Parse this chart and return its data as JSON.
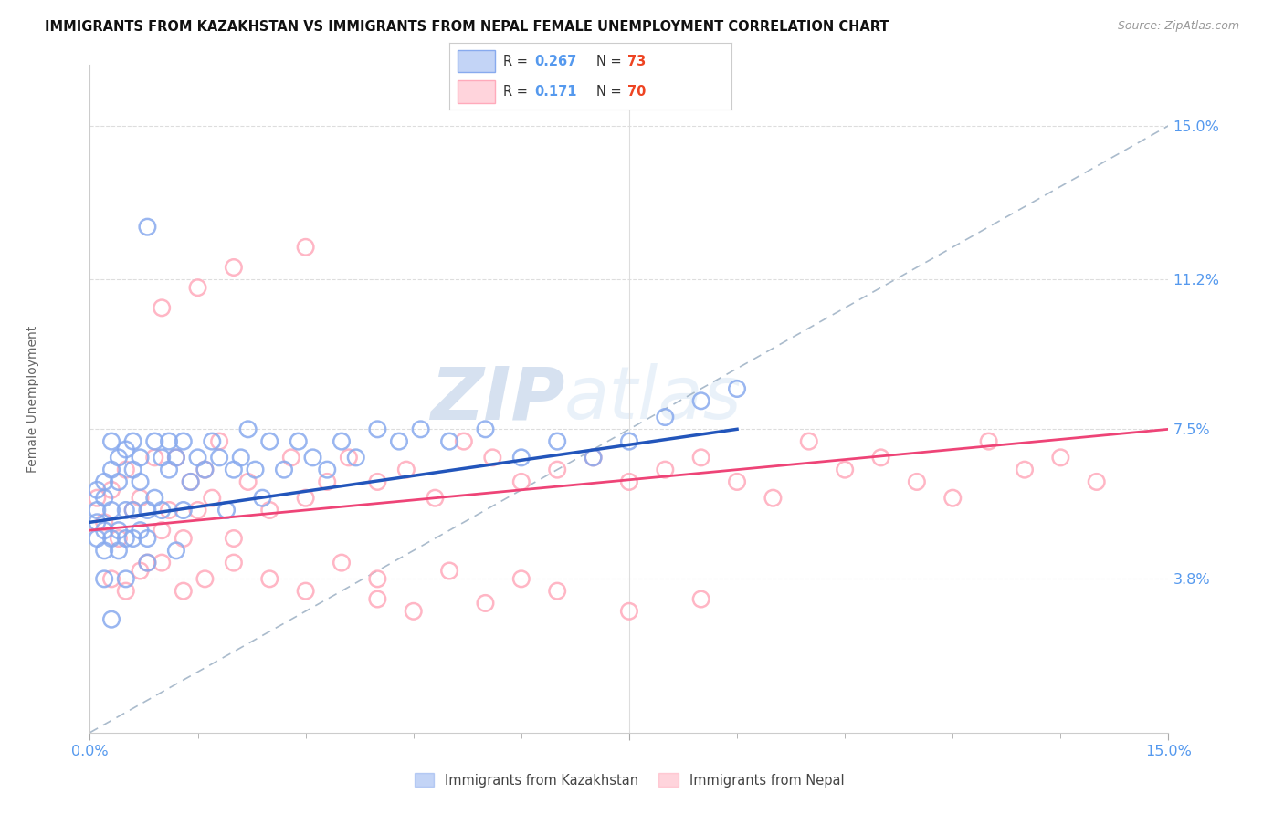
{
  "title": "IMMIGRANTS FROM KAZAKHSTAN VS IMMIGRANTS FROM NEPAL FEMALE UNEMPLOYMENT CORRELATION CHART",
  "source_text": "Source: ZipAtlas.com",
  "ylabel": "Female Unemployment",
  "y_ticks": [
    0.038,
    0.075,
    0.112,
    0.15
  ],
  "y_tick_labels": [
    "3.8%",
    "7.5%",
    "11.2%",
    "15.0%"
  ],
  "xlim": [
    0.0,
    0.15
  ],
  "ylim": [
    0.0,
    0.165
  ],
  "kazakhstan_color": "#88aaee",
  "nepal_color": "#ffaabb",
  "watermark_zip": "ZIP",
  "watermark_atlas": "atlas",
  "background_color": "#ffffff",
  "grid_color": "#dddddd",
  "tick_label_color": "#5599ee",
  "blue_line_color": "#2255bb",
  "pink_line_color": "#ee4477",
  "ref_line_color": "#aabbcc",
  "kazakhstan_x": [
    0.001,
    0.001,
    0.001,
    0.001,
    0.002,
    0.002,
    0.002,
    0.002,
    0.002,
    0.003,
    0.003,
    0.003,
    0.003,
    0.004,
    0.004,
    0.004,
    0.004,
    0.005,
    0.005,
    0.005,
    0.005,
    0.006,
    0.006,
    0.006,
    0.006,
    0.007,
    0.007,
    0.007,
    0.008,
    0.008,
    0.008,
    0.009,
    0.009,
    0.01,
    0.01,
    0.011,
    0.011,
    0.012,
    0.012,
    0.013,
    0.013,
    0.014,
    0.015,
    0.016,
    0.017,
    0.018,
    0.019,
    0.02,
    0.021,
    0.022,
    0.023,
    0.024,
    0.025,
    0.027,
    0.029,
    0.031,
    0.033,
    0.035,
    0.037,
    0.04,
    0.043,
    0.046,
    0.05,
    0.055,
    0.06,
    0.065,
    0.07,
    0.075,
    0.08,
    0.085,
    0.09,
    0.008,
    0.003
  ],
  "kazakhstan_y": [
    0.055,
    0.06,
    0.048,
    0.052,
    0.05,
    0.058,
    0.045,
    0.062,
    0.038,
    0.055,
    0.065,
    0.048,
    0.072,
    0.05,
    0.062,
    0.045,
    0.068,
    0.055,
    0.048,
    0.07,
    0.038,
    0.055,
    0.065,
    0.048,
    0.072,
    0.05,
    0.062,
    0.068,
    0.055,
    0.048,
    0.042,
    0.058,
    0.072,
    0.055,
    0.068,
    0.065,
    0.072,
    0.068,
    0.045,
    0.072,
    0.055,
    0.062,
    0.068,
    0.065,
    0.072,
    0.068,
    0.055,
    0.065,
    0.068,
    0.075,
    0.065,
    0.058,
    0.072,
    0.065,
    0.072,
    0.068,
    0.065,
    0.072,
    0.068,
    0.075,
    0.072,
    0.075,
    0.072,
    0.075,
    0.068,
    0.072,
    0.068,
    0.072,
    0.078,
    0.082,
    0.085,
    0.125,
    0.028
  ],
  "nepal_x": [
    0.001,
    0.002,
    0.003,
    0.004,
    0.005,
    0.006,
    0.007,
    0.008,
    0.009,
    0.01,
    0.011,
    0.012,
    0.013,
    0.014,
    0.015,
    0.016,
    0.017,
    0.018,
    0.02,
    0.022,
    0.025,
    0.028,
    0.03,
    0.033,
    0.036,
    0.04,
    0.044,
    0.048,
    0.052,
    0.056,
    0.06,
    0.065,
    0.07,
    0.075,
    0.08,
    0.085,
    0.09,
    0.095,
    0.1,
    0.105,
    0.11,
    0.115,
    0.12,
    0.125,
    0.13,
    0.135,
    0.14,
    0.003,
    0.005,
    0.007,
    0.01,
    0.013,
    0.016,
    0.02,
    0.025,
    0.03,
    0.035,
    0.04,
    0.05,
    0.06,
    0.04,
    0.045,
    0.055,
    0.065,
    0.075,
    0.085,
    0.03,
    0.02,
    0.015,
    0.01
  ],
  "nepal_y": [
    0.058,
    0.052,
    0.06,
    0.048,
    0.065,
    0.055,
    0.058,
    0.042,
    0.068,
    0.05,
    0.055,
    0.068,
    0.048,
    0.062,
    0.055,
    0.065,
    0.058,
    0.072,
    0.048,
    0.062,
    0.055,
    0.068,
    0.058,
    0.062,
    0.068,
    0.062,
    0.065,
    0.058,
    0.072,
    0.068,
    0.062,
    0.065,
    0.068,
    0.062,
    0.065,
    0.068,
    0.062,
    0.058,
    0.072,
    0.065,
    0.068,
    0.062,
    0.058,
    0.072,
    0.065,
    0.068,
    0.062,
    0.038,
    0.035,
    0.04,
    0.042,
    0.035,
    0.038,
    0.042,
    0.038,
    0.035,
    0.042,
    0.038,
    0.04,
    0.038,
    0.033,
    0.03,
    0.032,
    0.035,
    0.03,
    0.033,
    0.12,
    0.115,
    0.11,
    0.105
  ],
  "kaz_line_x0": 0.0,
  "kaz_line_x1": 0.09,
  "kaz_line_y0": 0.052,
  "kaz_line_y1": 0.075,
  "nep_line_x0": 0.0,
  "nep_line_x1": 0.15,
  "nep_line_y0": 0.05,
  "nep_line_y1": 0.075
}
